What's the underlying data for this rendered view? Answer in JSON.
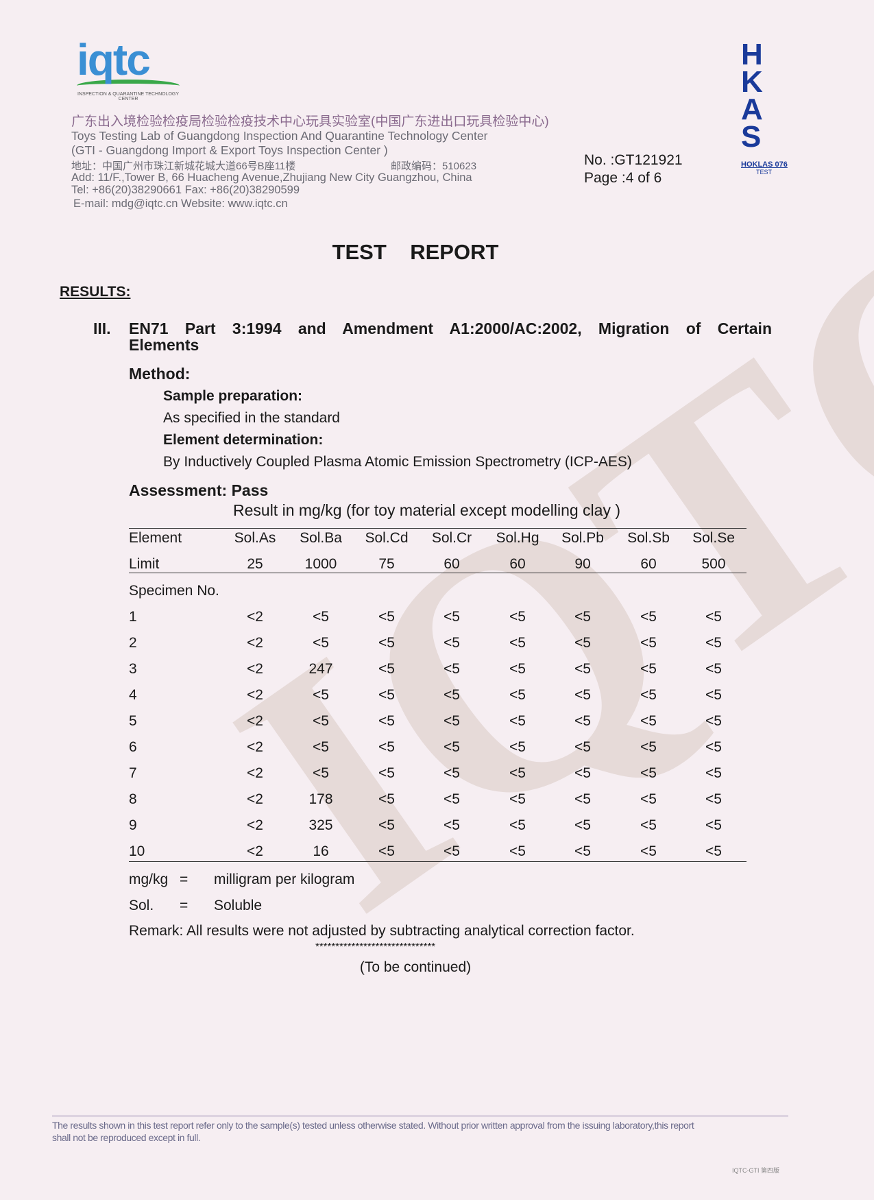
{
  "header": {
    "logo_text": "iqtc",
    "logo_sub": "INSPECTION & QUARANTINE TECHNOLOGY CENTER",
    "cn_name": "广东出入境检验检疫局检验检疫技术中心玩具实验室(中国广东进出口玩具检验中心)",
    "en_name": "Toys Testing Lab of Guangdong Inspection And Quarantine Technology Center",
    "en_sub": "(GTI - Guangdong Import & Export  Toys Inspection Center )",
    "cn_addr": "地址：中国广州市珠江新城花城大道66号B座11楼",
    "cn_post": "邮政编码：510623",
    "addr": "Add: 11/F.,Tower B, 66 Huacheng Avenue,Zhujiang New City Guangzhou, China",
    "tel": "Tel: +86(20)38290661  Fax: +86(20)38290599",
    "email": "E-mail: mdg@iqtc.cn    Website: www.iqtc.cn",
    "no": "No.   :GT121921",
    "page": "Page :4 of 6",
    "hkas_logo": "HKAS",
    "hkas_code": "HOKLAS 076",
    "hkas_test": "TEST"
  },
  "title": "TEST    REPORT",
  "results_label": "RESULTS:",
  "section": {
    "num": "III.",
    "heading1": "EN71 Part 3:1994 and Amendment A1:2000/AC:2002, Migration of Certain",
    "heading2": "Elements",
    "method": "Method:",
    "sample_prep": "Sample preparation:",
    "sample_prep_text": "As specified in the standard",
    "element_det": "Element determination:",
    "element_det_text": "By Inductively Coupled Plasma Atomic Emission Spectrometry (ICP-AES)",
    "assessment": "Assessment: Pass",
    "result_caption": "Result in mg/kg (for toy material except modelling clay )"
  },
  "table": {
    "element_label": "Element",
    "elements": [
      "Sol.As",
      "Sol.Ba",
      "Sol.Cd",
      "Sol.Cr",
      "Sol.Hg",
      "Sol.Pb",
      "Sol.Sb",
      "Sol.Se"
    ],
    "limit_label": "Limit",
    "limits": [
      "25",
      "1000",
      "75",
      "60",
      "60",
      "90",
      "60",
      "500"
    ],
    "specimen_label": "Specimen No.",
    "rows": [
      {
        "no": "1",
        "v": [
          "<2",
          "<5",
          "<5",
          "<5",
          "<5",
          "<5",
          "<5",
          "<5"
        ]
      },
      {
        "no": "2",
        "v": [
          "<2",
          "<5",
          "<5",
          "<5",
          "<5",
          "<5",
          "<5",
          "<5"
        ]
      },
      {
        "no": "3",
        "v": [
          "<2",
          "247",
          "<5",
          "<5",
          "<5",
          "<5",
          "<5",
          "<5"
        ]
      },
      {
        "no": "4",
        "v": [
          "<2",
          "<5",
          "<5",
          "<5",
          "<5",
          "<5",
          "<5",
          "<5"
        ]
      },
      {
        "no": "5",
        "v": [
          "<2",
          "<5",
          "<5",
          "<5",
          "<5",
          "<5",
          "<5",
          "<5"
        ]
      },
      {
        "no": "6",
        "v": [
          "<2",
          "<5",
          "<5",
          "<5",
          "<5",
          "<5",
          "<5",
          "<5"
        ]
      },
      {
        "no": "7",
        "v": [
          "<2",
          "<5",
          "<5",
          "<5",
          "<5",
          "<5",
          "<5",
          "<5"
        ]
      },
      {
        "no": "8",
        "v": [
          "<2",
          "178",
          "<5",
          "<5",
          "<5",
          "<5",
          "<5",
          "<5"
        ]
      },
      {
        "no": "9",
        "v": [
          "<2",
          "325",
          "<5",
          "<5",
          "<5",
          "<5",
          "<5",
          "<5"
        ]
      },
      {
        "no": "10",
        "v": [
          "<2",
          "16",
          "<5",
          "<5",
          "<5",
          "<5",
          "<5",
          "<5"
        ]
      }
    ]
  },
  "notes": {
    "mgkg_abbr": "mg/kg",
    "mgkg_eq": "=",
    "mgkg_def": "milligram per kilogram",
    "sol_abbr": "Sol.",
    "sol_eq": "=",
    "sol_def": "Soluble",
    "remark": "Remark: All results were not adjusted by subtracting analytical correction factor.",
    "stars": "******************************",
    "continued": "(To be continued)"
  },
  "footer": {
    "disclaimer1": "The results shown in this test report refer only to the sample(s) tested unless otherwise stated. Without prior written approval from the issuing laboratory,this report",
    "disclaimer2": "shall not be reproduced except in full.",
    "code": "IQTC-GTI  第四版"
  }
}
